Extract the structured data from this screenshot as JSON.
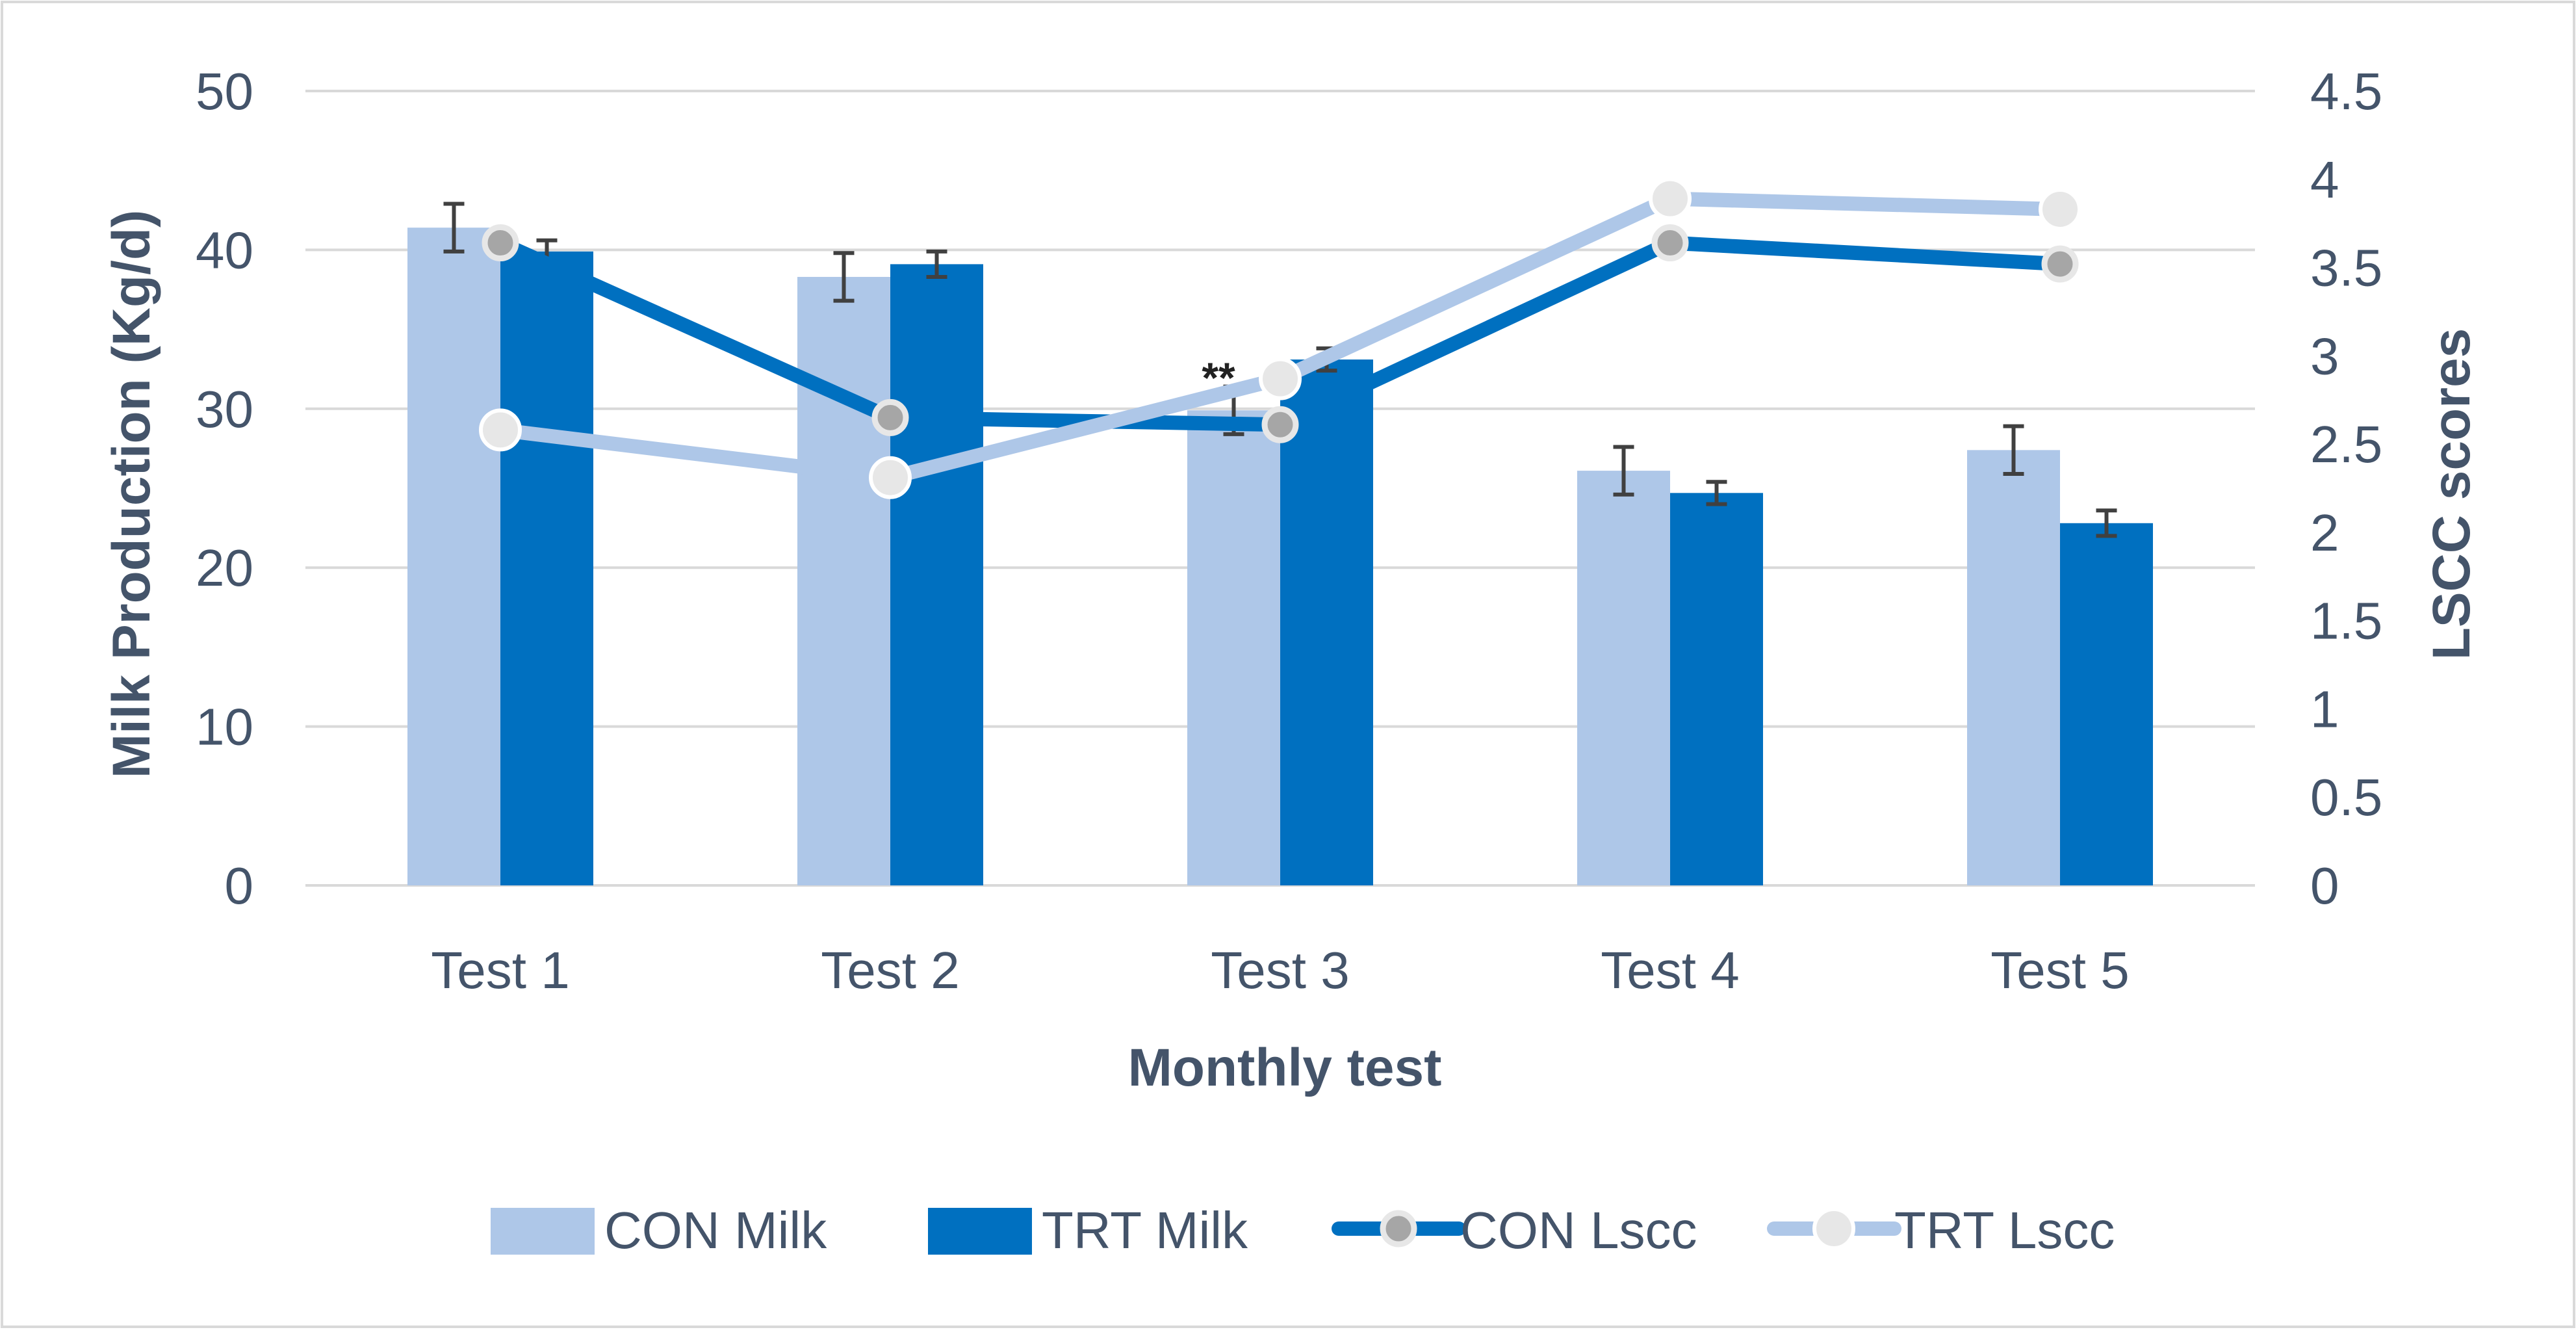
{
  "chart_data": {
    "type": "bar",
    "x_title": "Monthly test",
    "y_left_title": "Milk Production (Kg/d)",
    "y_right_title": "LSCC scores",
    "categories": [
      "Test 1",
      "Test 2",
      "Test 3",
      "Test 4",
      "Test 5"
    ],
    "y_left_range": [
      0,
      50
    ],
    "y_left_ticks": [
      "0",
      "10",
      "20",
      "30",
      "40",
      "50"
    ],
    "y_right_range": [
      0,
      4.5
    ],
    "y_right_ticks": [
      "0",
      "0.5",
      "1",
      "1.5",
      "2",
      "2.5",
      "3",
      "3.5",
      "4",
      "4.5"
    ],
    "grid": true,
    "legend_position": "bottom",
    "annotation": "**",
    "annotation_category": "Test 3",
    "bar_series": [
      {
        "name": "CON Milk",
        "color": "#aec7e8",
        "values": [
          41.4,
          38.3,
          29.9,
          26.1,
          27.4
        ],
        "errors": [
          1.5,
          1.5,
          1.5,
          1.5,
          1.5
        ]
      },
      {
        "name": "TRT Milk",
        "color": "#0070c0",
        "values": [
          39.9,
          39.1,
          33.1,
          24.7,
          22.8
        ],
        "errors": [
          0.7,
          0.8,
          0.7,
          0.7,
          0.8
        ]
      }
    ],
    "line_series": [
      {
        "name": "CON Lscc",
        "color": "#0070c0",
        "marker_color": "#a6a6a6",
        "values": [
          3.64,
          2.65,
          2.61,
          3.64,
          3.52
        ]
      },
      {
        "name": "TRT Lscc",
        "color": "#aec7e8",
        "marker_color": "#e7e7e7",
        "values": [
          2.58,
          2.31,
          2.87,
          3.89,
          3.83
        ]
      }
    ]
  },
  "colors": {
    "text": "#44546a",
    "grid": "#d9d9d9",
    "border": "#d9d9d9",
    "errorbar": "#404040"
  }
}
